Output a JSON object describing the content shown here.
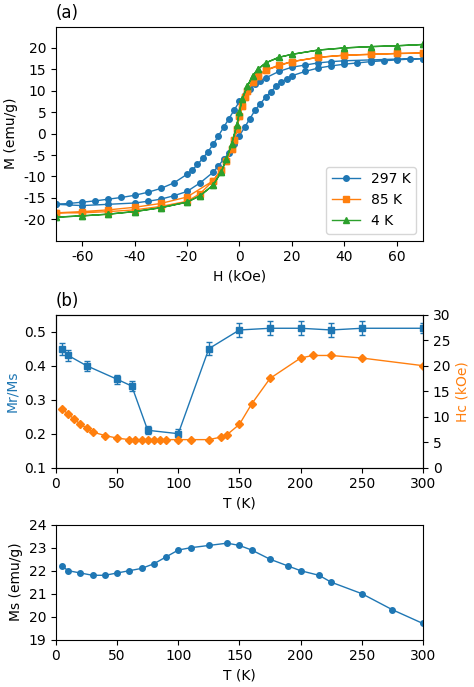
{
  "chart_data": [
    {
      "type": "line",
      "title": "(a)",
      "xlabel": "H (kOe)",
      "ylabel": "M (emu/g)",
      "xlim": [
        -70,
        70
      ],
      "ylim": [
        -25,
        25
      ],
      "xticks": [
        -60,
        -40,
        -20,
        0,
        20,
        40,
        60
      ],
      "yticks": [
        -20,
        -15,
        -10,
        -5,
        0,
        5,
        10,
        15,
        20
      ],
      "legend": "lower right",
      "series": [
        {
          "name": "297 K",
          "marker": "o",
          "x": [
            -70,
            -65,
            -60,
            -55,
            -50,
            -45,
            -40,
            -35,
            -30,
            -25,
            -20,
            -18,
            -16,
            -14,
            -12,
            -10,
            -8,
            -6,
            -4,
            -2,
            0,
            2,
            4,
            6,
            8,
            10,
            15,
            20,
            25,
            30,
            35,
            40,
            50,
            60,
            70,
            70,
            65,
            60,
            55,
            50,
            45,
            40,
            35,
            30,
            25,
            20,
            18,
            16,
            14,
            12,
            10,
            8,
            6,
            4,
            2,
            0,
            -2,
            -4,
            -6,
            -8,
            -10,
            -15,
            -20,
            -25,
            -30,
            -35,
            -40,
            -50,
            -60,
            -70
          ],
          "values": [
            -16.5,
            -16.3,
            -16.0,
            -15.7,
            -15.3,
            -14.9,
            -14.4,
            -13.7,
            -12.8,
            -11.5,
            -9.5,
            -8.5,
            -7.2,
            -5.8,
            -4.2,
            -2.5,
            -0.5,
            1.5,
            3.5,
            5.5,
            7.5,
            9.0,
            10.5,
            11.5,
            12.3,
            13.0,
            14.5,
            15.5,
            16.0,
            16.5,
            16.8,
            17.0,
            17.2,
            17.4,
            17.5,
            17.5,
            17.4,
            17.2,
            17.0,
            16.8,
            16.5,
            16.2,
            15.8,
            15.3,
            14.5,
            13.5,
            12.8,
            12.0,
            11.0,
            9.8,
            8.5,
            7.0,
            5.5,
            3.5,
            1.5,
            -0.5,
            -2.5,
            -4.5,
            -6.0,
            -7.5,
            -9.0,
            -11.5,
            -13.5,
            -14.5,
            -15.3,
            -15.8,
            -16.2,
            -16.5,
            -16.8,
            -16.5
          ]
        },
        {
          "name": "85 K",
          "marker": "s",
          "x": [
            -70,
            -60,
            -50,
            -40,
            -30,
            -20,
            -10,
            -7,
            -5,
            -3,
            -2,
            -1,
            0,
            1,
            2,
            3,
            5,
            7,
            10,
            15,
            20,
            30,
            40,
            50,
            60,
            70,
            70,
            60,
            50,
            40,
            30,
            20,
            10,
            7,
            5,
            3,
            2,
            1,
            0,
            -1,
            -2,
            -3,
            -5,
            -7,
            -10,
            -15,
            -20,
            -30,
            -40,
            -50,
            -60,
            -70
          ],
          "values": [
            -18.5,
            -18.2,
            -17.8,
            -17.2,
            -16.3,
            -14.8,
            -11.0,
            -8.5,
            -6.5,
            -3.5,
            -1.5,
            1.0,
            4.0,
            6.5,
            8.5,
            10.0,
            12.0,
            13.5,
            14.8,
            16.0,
            16.8,
            17.8,
            18.3,
            18.5,
            18.7,
            18.8,
            18.8,
            18.7,
            18.5,
            18.3,
            17.8,
            16.8,
            14.8,
            13.5,
            12.0,
            10.0,
            8.5,
            6.5,
            4.0,
            1.0,
            -1.5,
            -3.5,
            -6.5,
            -8.5,
            -11.0,
            -14.0,
            -15.8,
            -17.0,
            -17.8,
            -18.2,
            -18.5,
            -18.5
          ]
        },
        {
          "name": "4 K",
          "marker": "^",
          "x": [
            -70,
            -60,
            -50,
            -40,
            -30,
            -20,
            -15,
            -10,
            -7,
            -5,
            -3,
            -1,
            0,
            1,
            3,
            5,
            7,
            10,
            15,
            20,
            30,
            40,
            50,
            60,
            70,
            70,
            60,
            50,
            40,
            30,
            20,
            15,
            10,
            7,
            5,
            3,
            1,
            0,
            -1,
            -3,
            -5,
            -7,
            -10,
            -15,
            -20,
            -30,
            -40,
            -50,
            -60,
            -70
          ],
          "values": [
            -19.5,
            -19.2,
            -18.8,
            -18.2,
            -17.3,
            -16.0,
            -14.5,
            -12.0,
            -9.0,
            -6.0,
            -2.5,
            2.0,
            5.0,
            8.0,
            11.0,
            13.5,
            15.0,
            16.5,
            17.8,
            18.5,
            19.5,
            20.0,
            20.3,
            20.5,
            20.8,
            20.8,
            20.5,
            20.3,
            20.0,
            19.5,
            18.5,
            17.8,
            16.5,
            15.0,
            13.5,
            11.0,
            8.0,
            5.0,
            2.0,
            -2.5,
            -6.0,
            -9.0,
            -12.0,
            -14.5,
            -16.0,
            -17.3,
            -18.2,
            -18.8,
            -19.2,
            -19.5
          ]
        }
      ]
    },
    {
      "type": "line",
      "title": "(b)",
      "xlabel": "T (K)",
      "ylabel": "Mr/Ms",
      "y2label": "Hc (kOe)",
      "xlim": [
        0,
        300
      ],
      "ylim": [
        0.1,
        0.55
      ],
      "y2lim": [
        0,
        30
      ],
      "xticks": [
        0,
        50,
        100,
        150,
        200,
        250,
        300
      ],
      "yticks": [
        0.1,
        0.2,
        0.3,
        0.4,
        0.5
      ],
      "y2ticks": [
        0,
        5,
        10,
        15,
        20,
        25,
        30
      ],
      "series": [
        {
          "marker": "s",
          "x": [
            5,
            10,
            25,
            50,
            62,
            75,
            100,
            125,
            150,
            175,
            200,
            225,
            250,
            300
          ],
          "values": [
            0.45,
            0.43,
            0.4,
            0.36,
            0.34,
            0.21,
            0.2,
            0.45,
            0.505,
            0.51,
            0.51,
            0.505,
            0.51,
            0.51
          ],
          "errors": [
            0.018,
            0.015,
            0.015,
            0.013,
            0.015,
            0.012,
            0.015,
            0.02,
            0.02,
            0.02,
            0.02,
            0.02,
            0.02,
            0.015
          ]
        },
        {
          "marker": "D",
          "axis": "y2",
          "x": [
            5,
            10,
            15,
            20,
            25,
            30,
            40,
            50,
            60,
            65,
            70,
            75,
            80,
            85,
            90,
            100,
            110,
            125,
            135,
            140,
            150,
            160,
            175,
            200,
            210,
            225,
            250,
            300
          ],
          "values": [
            11.5,
            10.5,
            9.5,
            8.5,
            7.8,
            7.0,
            6.3,
            5.8,
            5.5,
            5.5,
            5.5,
            5.5,
            5.5,
            5.5,
            5.5,
            5.5,
            5.5,
            5.5,
            6.0,
            6.5,
            8.5,
            12.5,
            17.5,
            21.5,
            22.0,
            22.0,
            21.5,
            20.0
          ]
        }
      ]
    },
    {
      "type": "line",
      "xlabel": "T (K)",
      "ylabel": "Ms (emu/g)",
      "xlim": [
        0,
        300
      ],
      "ylim": [
        19,
        24
      ],
      "xticks": [
        0,
        50,
        100,
        150,
        200,
        250,
        300
      ],
      "yticks": [
        19,
        20,
        21,
        22,
        23,
        24
      ],
      "series": [
        {
          "marker": "o",
          "x": [
            5,
            10,
            20,
            30,
            40,
            50,
            60,
            70,
            80,
            90,
            100,
            110,
            125,
            140,
            150,
            160,
            175,
            190,
            200,
            215,
            225,
            250,
            275,
            300
          ],
          "values": [
            22.2,
            22.0,
            21.9,
            21.8,
            21.8,
            21.9,
            22.0,
            22.1,
            22.3,
            22.6,
            22.9,
            23.0,
            23.1,
            23.2,
            23.1,
            22.9,
            22.5,
            22.2,
            22.0,
            21.8,
            21.5,
            21.0,
            20.3,
            19.7
          ]
        }
      ]
    }
  ]
}
